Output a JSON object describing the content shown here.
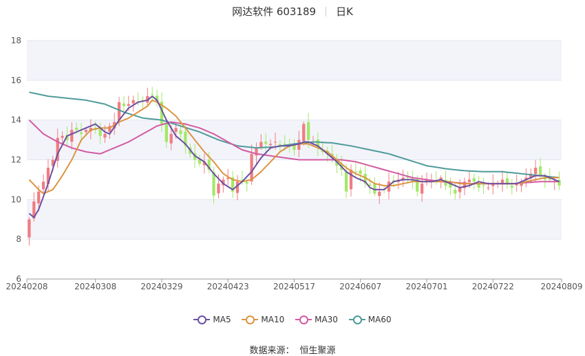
{
  "title": {
    "name": "网达软件 603189",
    "period": "日K"
  },
  "source": {
    "label": "数据来源：",
    "value": "恒生聚源"
  },
  "colors": {
    "up": "#f07c82",
    "down": "#a3e867",
    "ma5": "#6c4fa0",
    "ma10": "#dd9440",
    "ma30": "#d35aa2",
    "ma60": "#4f9a9a",
    "grid_band": "#f2f4fa"
  },
  "chart_data": {
    "type": "candlestick",
    "ylim": [
      6,
      18
    ],
    "yticks": [
      6,
      8,
      10,
      12,
      14,
      16,
      18
    ],
    "xticks": [
      "20240208",
      "20240308",
      "20240329",
      "20240423",
      "20240517",
      "20240607",
      "20240701",
      "20240722",
      "20240809"
    ],
    "xtick_index": [
      0,
      14,
      28,
      42,
      56,
      70,
      84,
      98,
      112
    ],
    "days": 113,
    "legend": [
      "MA5",
      "MA10",
      "MA30",
      "MA60"
    ],
    "close_anchors": [
      [
        0,
        9.0
      ],
      [
        1,
        9.9
      ],
      [
        3,
        10.9
      ],
      [
        4,
        11.6
      ],
      [
        5,
        12.0
      ],
      [
        6,
        13.1
      ],
      [
        7,
        13.2
      ],
      [
        8,
        13.0
      ],
      [
        9,
        13.5
      ],
      [
        10,
        13.5
      ],
      [
        11,
        13.3
      ],
      [
        12,
        13.5
      ],
      [
        13,
        13.6
      ],
      [
        14,
        13.5
      ],
      [
        15,
        13.2
      ],
      [
        16,
        13.3
      ],
      [
        17,
        13.7
      ],
      [
        18,
        13.9
      ],
      [
        19,
        14.9
      ],
      [
        20,
        14.7
      ],
      [
        21,
        14.8
      ],
      [
        22,
        15.0
      ],
      [
        23,
        14.9
      ],
      [
        24,
        15.0
      ],
      [
        25,
        15.2
      ],
      [
        26,
        15.3
      ],
      [
        27,
        14.9
      ],
      [
        28,
        13.8
      ],
      [
        29,
        12.9
      ],
      [
        30,
        13.3
      ],
      [
        31,
        13.6
      ],
      [
        32,
        13.3
      ],
      [
        33,
        12.7
      ],
      [
        34,
        12.3
      ],
      [
        35,
        12.0
      ],
      [
        36,
        11.8
      ],
      [
        37,
        11.9
      ],
      [
        38,
        11.5
      ],
      [
        39,
        10.2
      ],
      [
        40,
        10.8
      ],
      [
        41,
        11.0
      ],
      [
        42,
        11.1
      ],
      [
        43,
        10.4
      ],
      [
        44,
        10.9
      ],
      [
        45,
        11.0
      ],
      [
        46,
        10.8
      ],
      [
        47,
        12.3
      ],
      [
        48,
        12.6
      ],
      [
        49,
        12.9
      ],
      [
        50,
        12.8
      ],
      [
        51,
        12.8
      ],
      [
        52,
        12.9
      ],
      [
        53,
        12.7
      ],
      [
        54,
        12.8
      ],
      [
        55,
        12.7
      ],
      [
        56,
        12.5
      ],
      [
        57,
        13.0
      ],
      [
        58,
        13.8
      ],
      [
        59,
        13.0
      ],
      [
        60,
        12.9
      ],
      [
        61,
        12.6
      ],
      [
        62,
        12.4
      ],
      [
        63,
        12.3
      ],
      [
        64,
        12.1
      ],
      [
        65,
        11.7
      ],
      [
        66,
        11.5
      ],
      [
        67,
        10.4
      ],
      [
        68,
        11.5
      ],
      [
        69,
        11.4
      ],
      [
        70,
        11.3
      ],
      [
        71,
        10.8
      ],
      [
        72,
        10.7
      ],
      [
        73,
        10.3
      ],
      [
        74,
        10.4
      ],
      [
        75,
        10.5
      ],
      [
        76,
        10.9
      ],
      [
        77,
        10.9
      ],
      [
        78,
        11.0
      ],
      [
        79,
        11.1
      ],
      [
        80,
        11.1
      ],
      [
        81,
        10.9
      ],
      [
        82,
        10.4
      ],
      [
        83,
        10.8
      ],
      [
        84,
        11.0
      ],
      [
        85,
        11.0
      ],
      [
        86,
        10.9
      ],
      [
        87,
        11.1
      ],
      [
        88,
        10.7
      ],
      [
        89,
        10.6
      ],
      [
        90,
        10.3
      ],
      [
        91,
        10.6
      ],
      [
        92,
        10.9
      ],
      [
        93,
        11.0
      ],
      [
        94,
        10.9
      ],
      [
        95,
        10.6
      ],
      [
        96,
        10.7
      ],
      [
        97,
        10.6
      ],
      [
        98,
        10.8
      ],
      [
        99,
        10.8
      ],
      [
        100,
        11.0
      ],
      [
        101,
        10.8
      ],
      [
        102,
        10.6
      ],
      [
        103,
        10.8
      ],
      [
        104,
        10.9
      ],
      [
        105,
        11.1
      ],
      [
        106,
        11.3
      ],
      [
        107,
        11.6
      ],
      [
        108,
        11.2
      ],
      [
        109,
        11.0
      ],
      [
        110,
        11.0
      ],
      [
        111,
        10.9
      ],
      [
        112,
        10.7
      ]
    ],
    "ma5_anchors": [
      [
        0,
        9.3
      ],
      [
        1,
        9.1
      ],
      [
        2,
        9.5
      ],
      [
        4,
        10.8
      ],
      [
        6,
        12.3
      ],
      [
        8,
        13.2
      ],
      [
        10,
        13.4
      ],
      [
        12,
        13.6
      ],
      [
        14,
        13.8
      ],
      [
        16,
        13.4
      ],
      [
        17,
        13.3
      ],
      [
        19,
        14.0
      ],
      [
        21,
        14.6
      ],
      [
        23,
        14.9
      ],
      [
        25,
        15.0
      ],
      [
        26,
        15.2
      ],
      [
        27,
        15.0
      ],
      [
        29,
        14.0
      ],
      [
        31,
        13.2
      ],
      [
        33,
        12.8
      ],
      [
        35,
        12.2
      ],
      [
        37,
        11.9
      ],
      [
        39,
        11.3
      ],
      [
        41,
        10.8
      ],
      [
        43,
        10.5
      ],
      [
        45,
        10.9
      ],
      [
        47,
        11.4
      ],
      [
        49,
        12.1
      ],
      [
        51,
        12.6
      ],
      [
        53,
        12.7
      ],
      [
        55,
        12.7
      ],
      [
        57,
        12.8
      ],
      [
        58,
        12.9
      ],
      [
        59,
        12.9
      ],
      [
        61,
        12.7
      ],
      [
        63,
        12.3
      ],
      [
        65,
        11.9
      ],
      [
        67,
        11.4
      ],
      [
        69,
        11.1
      ],
      [
        71,
        10.9
      ],
      [
        72,
        10.6
      ],
      [
        73,
        10.5
      ],
      [
        75,
        10.5
      ],
      [
        77,
        10.9
      ],
      [
        79,
        11.0
      ],
      [
        81,
        11.0
      ],
      [
        83,
        10.9
      ],
      [
        85,
        10.9
      ],
      [
        87,
        11.0
      ],
      [
        89,
        10.8
      ],
      [
        91,
        10.6
      ],
      [
        93,
        10.7
      ],
      [
        95,
        10.9
      ],
      [
        97,
        10.8
      ],
      [
        99,
        10.8
      ],
      [
        101,
        10.8
      ],
      [
        103,
        10.8
      ],
      [
        105,
        11.0
      ],
      [
        107,
        11.2
      ],
      [
        109,
        11.2
      ],
      [
        111,
        11.0
      ],
      [
        112,
        10.9
      ]
    ],
    "ma10_anchors": [
      [
        0,
        11.0
      ],
      [
        2,
        10.5
      ],
      [
        3,
        10.3
      ],
      [
        5,
        10.5
      ],
      [
        7,
        11.2
      ],
      [
        9,
        12.0
      ],
      [
        11,
        13.0
      ],
      [
        13,
        13.5
      ],
      [
        15,
        13.6
      ],
      [
        17,
        13.6
      ],
      [
        19,
        13.9
      ],
      [
        21,
        14.1
      ],
      [
        23,
        14.4
      ],
      [
        25,
        14.7
      ],
      [
        26,
        15.0
      ],
      [
        27,
        14.9
      ],
      [
        29,
        14.6
      ],
      [
        31,
        14.2
      ],
      [
        33,
        13.6
      ],
      [
        35,
        13.0
      ],
      [
        37,
        12.4
      ],
      [
        39,
        11.9
      ],
      [
        41,
        11.3
      ],
      [
        43,
        11.0
      ],
      [
        45,
        10.9
      ],
      [
        47,
        11.0
      ],
      [
        49,
        11.4
      ],
      [
        51,
        11.9
      ],
      [
        53,
        12.4
      ],
      [
        55,
        12.7
      ],
      [
        57,
        12.8
      ],
      [
        59,
        12.8
      ],
      [
        61,
        12.6
      ],
      [
        63,
        12.4
      ],
      [
        65,
        12.0
      ],
      [
        67,
        11.6
      ],
      [
        69,
        11.3
      ],
      [
        71,
        11.1
      ],
      [
        73,
        10.8
      ],
      [
        75,
        10.7
      ],
      [
        77,
        10.7
      ],
      [
        79,
        10.8
      ],
      [
        81,
        10.9
      ],
      [
        83,
        10.9
      ],
      [
        85,
        10.9
      ],
      [
        87,
        10.9
      ],
      [
        89,
        10.9
      ],
      [
        91,
        10.8
      ],
      [
        93,
        10.8
      ],
      [
        95,
        10.8
      ],
      [
        97,
        10.8
      ],
      [
        99,
        10.8
      ],
      [
        101,
        10.8
      ],
      [
        103,
        10.8
      ],
      [
        105,
        10.9
      ],
      [
        107,
        11.0
      ],
      [
        109,
        11.1
      ],
      [
        111,
        11.1
      ],
      [
        112,
        11.1
      ]
    ],
    "ma30_anchors": [
      [
        0,
        14.0
      ],
      [
        3,
        13.3
      ],
      [
        6,
        12.9
      ],
      [
        9,
        12.6
      ],
      [
        12,
        12.4
      ],
      [
        15,
        12.3
      ],
      [
        18,
        12.6
      ],
      [
        21,
        12.9
      ],
      [
        24,
        13.3
      ],
      [
        27,
        13.7
      ],
      [
        30,
        13.9
      ],
      [
        33,
        13.8
      ],
      [
        36,
        13.6
      ],
      [
        39,
        13.3
      ],
      [
        42,
        12.9
      ],
      [
        45,
        12.5
      ],
      [
        48,
        12.3
      ],
      [
        51,
        12.2
      ],
      [
        54,
        12.1
      ],
      [
        57,
        12.0
      ],
      [
        60,
        12.0
      ],
      [
        63,
        12.0
      ],
      [
        66,
        12.0
      ],
      [
        69,
        11.9
      ],
      [
        72,
        11.7
      ],
      [
        75,
        11.5
      ],
      [
        78,
        11.3
      ],
      [
        81,
        11.1
      ],
      [
        84,
        11.0
      ],
      [
        87,
        10.9
      ],
      [
        90,
        10.85
      ],
      [
        93,
        10.8
      ],
      [
        96,
        10.8
      ],
      [
        99,
        10.8
      ],
      [
        102,
        10.8
      ],
      [
        105,
        10.85
      ],
      [
        108,
        10.9
      ],
      [
        112,
        10.9
      ]
    ],
    "ma60_anchors": [
      [
        0,
        15.4
      ],
      [
        4,
        15.2
      ],
      [
        8,
        15.1
      ],
      [
        12,
        15.0
      ],
      [
        16,
        14.8
      ],
      [
        20,
        14.4
      ],
      [
        24,
        14.1
      ],
      [
        28,
        14.0
      ],
      [
        32,
        13.7
      ],
      [
        36,
        13.4
      ],
      [
        40,
        13.0
      ],
      [
        44,
        12.7
      ],
      [
        48,
        12.6
      ],
      [
        52,
        12.65
      ],
      [
        56,
        12.8
      ],
      [
        60,
        12.9
      ],
      [
        64,
        12.85
      ],
      [
        68,
        12.7
      ],
      [
        72,
        12.5
      ],
      [
        76,
        12.3
      ],
      [
        80,
        12.0
      ],
      [
        84,
        11.7
      ],
      [
        88,
        11.55
      ],
      [
        92,
        11.45
      ],
      [
        96,
        11.4
      ],
      [
        100,
        11.4
      ],
      [
        104,
        11.3
      ],
      [
        108,
        11.2
      ],
      [
        112,
        11.1
      ]
    ]
  }
}
